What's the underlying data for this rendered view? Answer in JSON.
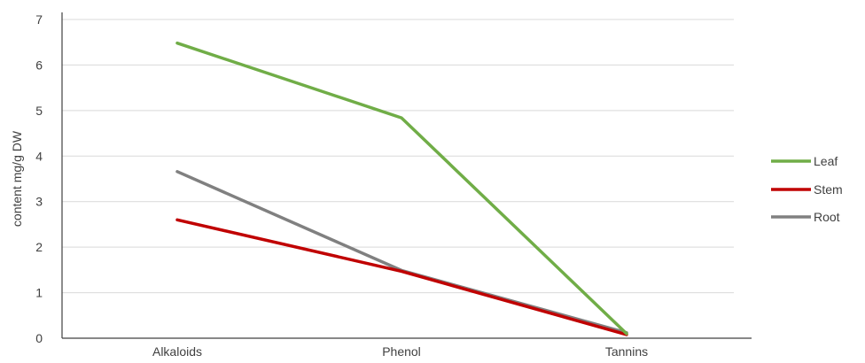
{
  "chart_data": {
    "type": "line",
    "title": "",
    "xlabel": "",
    "ylabel": "content mg/g DW",
    "categories": [
      "Alkaloids",
      "Phenol",
      "Tannins"
    ],
    "ylim": [
      0,
      7
    ],
    "yticks": [
      0,
      1,
      2,
      3,
      4,
      5,
      6,
      7
    ],
    "grid": true,
    "legend_position": "right",
    "series": [
      {
        "name": "Leaf",
        "values": [
          6.48,
          4.84,
          0.1
        ],
        "color": "#70ad47"
      },
      {
        "name": "Stem",
        "values": [
          2.6,
          1.47,
          0.08
        ],
        "color": "#c00000"
      },
      {
        "name": "Root",
        "values": [
          3.66,
          1.49,
          0.12
        ],
        "color": "#808080"
      }
    ]
  }
}
